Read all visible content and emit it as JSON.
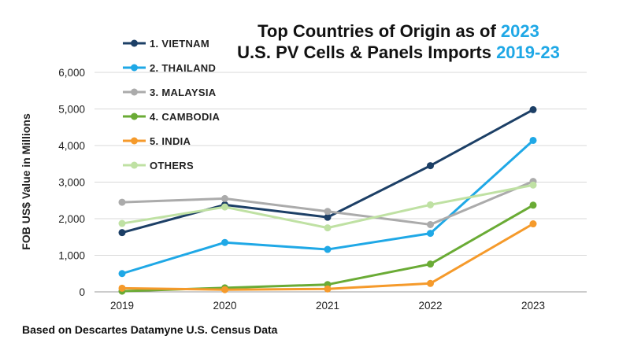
{
  "chart_data": {
    "type": "line",
    "title_line1": [
      "Top Countries of Origin as of ",
      "2023"
    ],
    "title_line2": [
      "U.S. PV Cells & Panels Imports ",
      "2019-23"
    ],
    "title_accent": "#1fa8e6",
    "ylabel": "FOB US$ Value in Millions",
    "xlabel": "",
    "x": [
      "2019",
      "2020",
      "2021",
      "2022",
      "2023"
    ],
    "ylim": [
      0,
      6000
    ],
    "yticks": [
      0,
      1000,
      2000,
      3000,
      4000,
      5000,
      6000
    ],
    "ytick_labels": [
      "0",
      "1,000",
      "2,000",
      "3,000",
      "4,000",
      "5,000",
      "6,000"
    ],
    "grid": "horizontal",
    "legend_position": "top-left",
    "series": [
      {
        "name": "1. VIETNAM",
        "color": "#1c3f66",
        "values": [
          1620,
          2380,
          2040,
          3450,
          4980
        ]
      },
      {
        "name": "2. THAILAND",
        "color": "#1fa8e6",
        "values": [
          500,
          1350,
          1160,
          1600,
          4140
        ]
      },
      {
        "name": "3. MALAYSIA",
        "color": "#ababab",
        "values": [
          2450,
          2550,
          2200,
          1840,
          3020
        ]
      },
      {
        "name": "4. CAMBODIA",
        "color": "#6aab35",
        "values": [
          20,
          110,
          200,
          760,
          2370
        ]
      },
      {
        "name": "5. INDIA",
        "color": "#f59a2b",
        "values": [
          100,
          60,
          80,
          230,
          1860
        ]
      },
      {
        "name": "OTHERS",
        "color": "#bfe1a3",
        "values": [
          1870,
          2320,
          1750,
          2380,
          2920
        ]
      }
    ],
    "source": "Based on Descartes Datamyne U.S. Census Data"
  }
}
